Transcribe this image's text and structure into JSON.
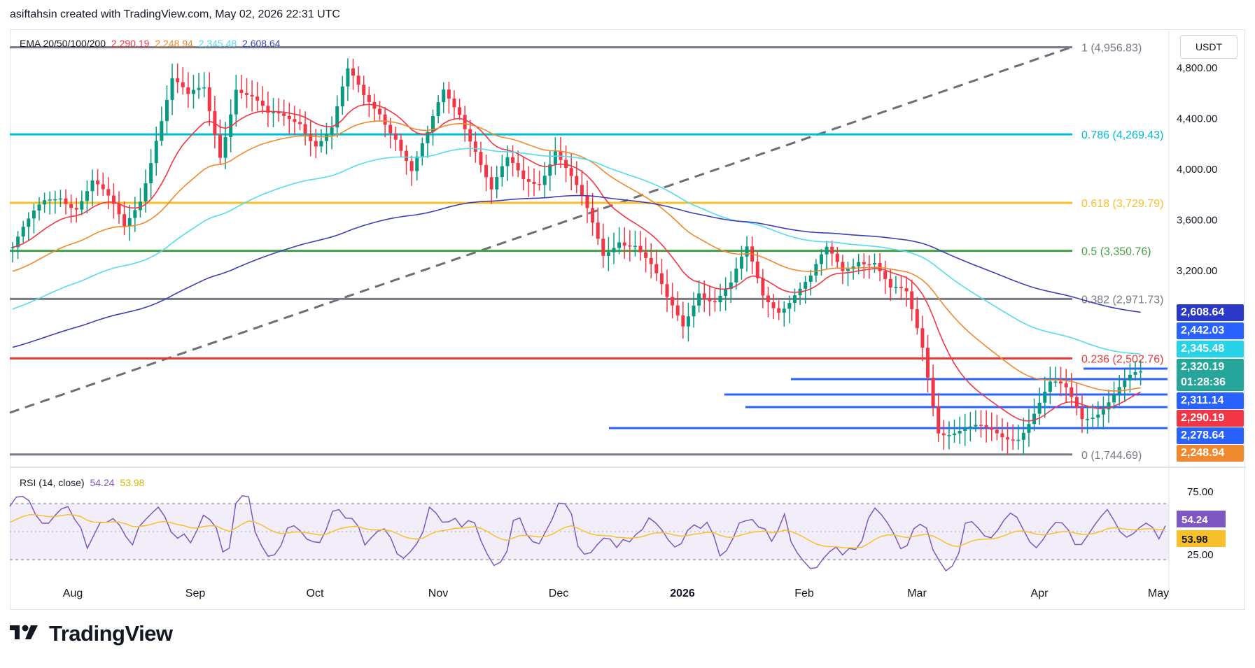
{
  "header": {
    "text": "asiftahsin created with TradingView.com, May 02, 2026 22:31 UTC"
  },
  "price_axis": {
    "currency": "USDT"
  },
  "legend": {
    "ema_label": "EMA 20/50/100/200",
    "ema_values": [
      {
        "text": "2,290.19",
        "color": "#f23645"
      },
      {
        "text": "2,248.94",
        "color": "#f0892d"
      },
      {
        "text": "2,345.48",
        "color": "#56dbe8"
      },
      {
        "text": "2,608.64",
        "color": "#3f3fb5"
      }
    ],
    "rsi_label": "RSI (14, close)",
    "rsi_values": [
      {
        "text": "54.24",
        "color": "#7e57c2"
      },
      {
        "text": "53.98",
        "color": "#d4b600"
      }
    ]
  },
  "footer": {
    "brand": "TradingView"
  },
  "chart_data": {
    "type": "candlestick",
    "symbol_quote": "USDT",
    "x_ticks": [
      "Aug",
      "Sep",
      "Oct",
      "Nov",
      "Dec",
      "2026",
      "Feb",
      "Mar",
      "Apr",
      "May"
    ],
    "y_ticks": [
      "4,800.00",
      "4,400.00",
      "4,000.00",
      "3,600.00",
      "3,200.00"
    ],
    "y_range": [
      1650,
      5150
    ],
    "fibonacci": [
      {
        "level": "1",
        "price": 4956.83,
        "label": "1 (4,956.83)",
        "color": "#787b86"
      },
      {
        "level": "0.786",
        "price": 4269.43,
        "label": "0.786 (4,269.43)",
        "color": "#00bcd4"
      },
      {
        "level": "0.618",
        "price": 3729.79,
        "label": "0.618 (3,729.79)",
        "color": "#f7c02b"
      },
      {
        "level": "0.5",
        "price": 3350.76,
        "label": "0.5 (3,350.76)",
        "color": "#43a047"
      },
      {
        "level": "0.382",
        "price": 2971.73,
        "label": "0.382 (2,971.73)",
        "color": "#787b86"
      },
      {
        "level": "0.236",
        "price": 2502.76,
        "label": "0.236 (2,502.76)",
        "color": "#e53935"
      },
      {
        "level": "0",
        "price": 1744.69,
        "label": "0 (1,744.69)",
        "color": "#787b86"
      }
    ],
    "price_badges": [
      {
        "text": "2,608.64",
        "bg": "#2938c8"
      },
      {
        "text": "2,442.03",
        "bg": "#2962ff"
      },
      {
        "text": "2,345.48",
        "bg": "#26d3e8"
      },
      {
        "text": "2,320.19",
        "bg": "#26a69a"
      },
      {
        "text": "01:28:36",
        "bg": "#26a69a"
      },
      {
        "text": "2,311.14",
        "bg": "#2962ff"
      },
      {
        "text": "2,290.19",
        "bg": "#f23645"
      },
      {
        "text": "2,278.64",
        "bg": "#2962ff"
      },
      {
        "text": "2,248.94",
        "bg": "#f0892d"
      }
    ],
    "ohlc_close_path": [
      3380,
      3520,
      3700,
      3820,
      3760,
      3900,
      3700,
      3500,
      3800,
      4300,
      4700,
      4500,
      4600,
      4150,
      4700,
      4550,
      4350,
      4380,
      4420,
      4250,
      4300,
      4700,
      4550,
      4500,
      4300,
      3950,
      4200,
      4600,
      4500,
      4200,
      3800,
      4000,
      3900,
      3950,
      4200,
      3900,
      3600,
      3300,
      3500,
      3450,
      3200,
      2900,
      2750,
      3100,
      3000,
      3050,
      3300,
      3000,
      2950,
      3050,
      3100,
      3300,
      3200,
      3350,
      3300,
      3000,
      2950,
      2600,
      2000,
      1950,
      1900,
      1880,
      1900,
      1950,
      2100,
      2250,
      2200,
      2050,
      2150,
      2250,
      2300,
      2320
    ],
    "rsi": {
      "range": [
        25,
        75
      ],
      "upper": 70,
      "lower": 30,
      "current": 54.24,
      "signal": 53.98,
      "y_ticks": [
        "75.00",
        "25.00"
      ]
    }
  }
}
